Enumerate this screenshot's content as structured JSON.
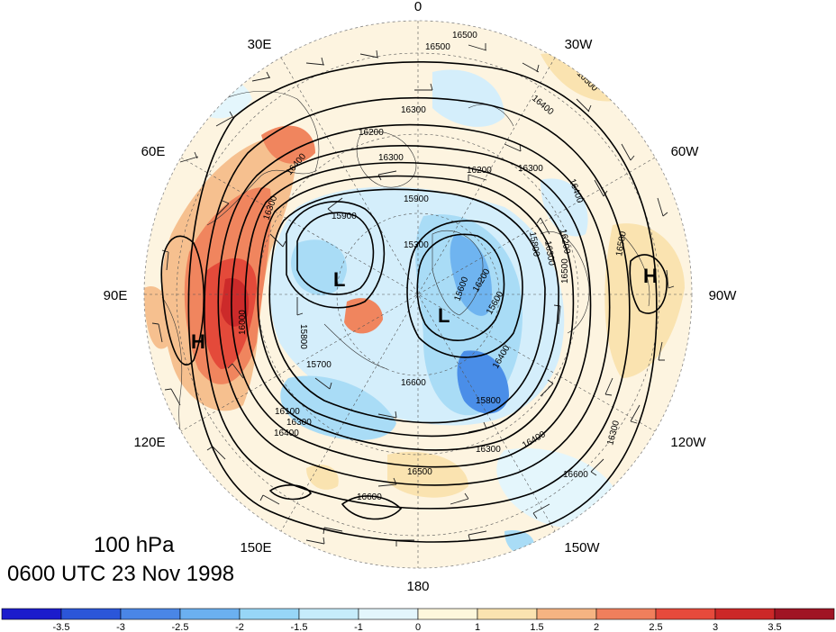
{
  "level": "100 hPa",
  "valid_time": "0600 UTC 23 Nov 1998",
  "longitude_labels": {
    "top": "0",
    "upper_left": "30E",
    "upper_right": "30W",
    "left_upper": "60E",
    "right_upper": "60W",
    "left": "90E",
    "right": "90W",
    "left_lower": "120E",
    "right_lower": "120W",
    "lower_left": "150E",
    "lower_right": "150W",
    "bottom": "180"
  },
  "pressure_centers": [
    {
      "type": "L",
      "label": "L"
    },
    {
      "type": "L",
      "label": "L"
    },
    {
      "type": "H",
      "label": "H"
    },
    {
      "type": "H",
      "label": "H"
    }
  ],
  "contour_labels": [
    "16500",
    "16500",
    "16500",
    "16400",
    "16300",
    "16200",
    "16400",
    "16300",
    "16200",
    "16300",
    "16400",
    "16300",
    "15900",
    "15900",
    "15800",
    "15300",
    "16300",
    "16200",
    "16600",
    "16000",
    "15800",
    "15700",
    "16200",
    "15600",
    "16500",
    "16400",
    "16100",
    "16300",
    "16400",
    "16500",
    "16600",
    "15800",
    "15600",
    "16400",
    "16300",
    "16600",
    "16500",
    "16600",
    "16300"
  ],
  "colorbar": {
    "colors": [
      "#1c1ccc",
      "#2b56d9",
      "#4a86e6",
      "#6bb0f0",
      "#97d6f7",
      "#c6ecfb",
      "#e3f6fc",
      "#fdf7dc",
      "#fae3b0",
      "#f6b482",
      "#f07f5c",
      "#e64a3c",
      "#cc2828",
      "#a01424"
    ],
    "tick_labels": [
      "-3.5",
      "-3",
      "-2.5",
      "-2",
      "-1.5",
      "-1",
      "0",
      "1",
      "1.5",
      "2",
      "2.5",
      "3",
      "3.5"
    ]
  },
  "colors": {
    "cool_anomaly": "#5aa0e8",
    "warm_anomaly": "#e8503a",
    "neutral": "#fdf7e6"
  }
}
